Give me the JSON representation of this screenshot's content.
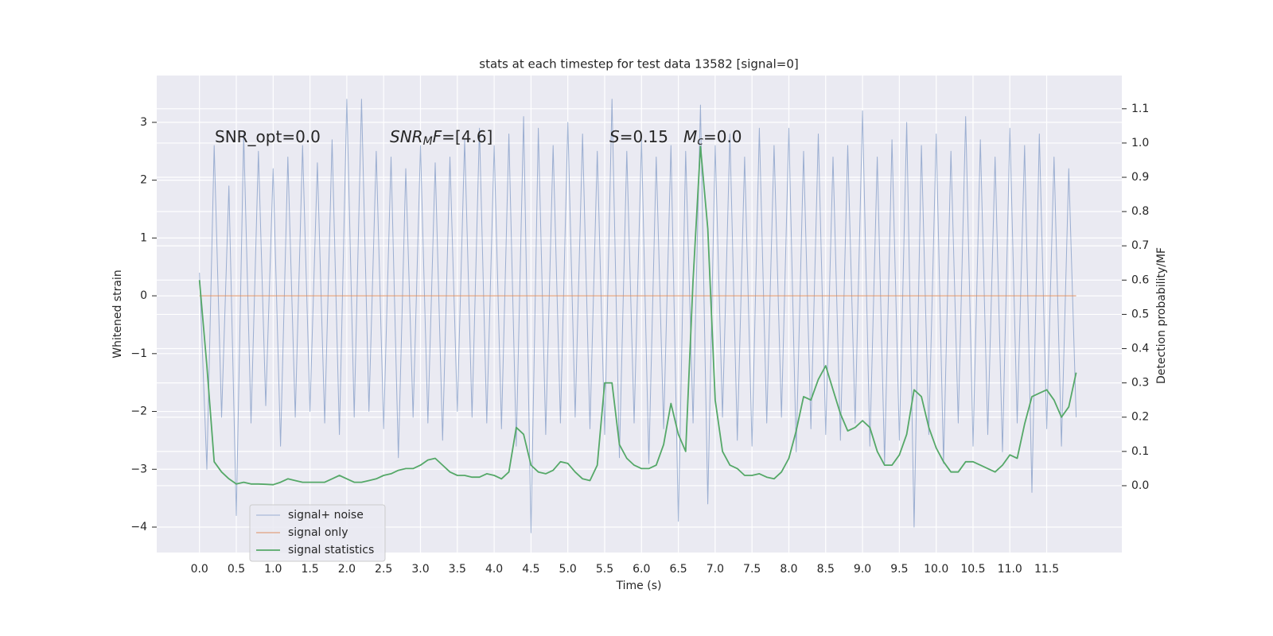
{
  "chart_data": {
    "type": "line",
    "title": "stats at each timestep for test data 13582 [signal=0]",
    "xlabel": "Time (s)",
    "ylabel": "Whitened strain",
    "y2label": "Detection probability/MF",
    "xlim": [
      -0.58,
      12.52
    ],
    "ylim": [
      -4.44,
      3.81
    ],
    "y2lim": [
      -0.195,
      1.197
    ],
    "xticks": [
      {
        "value": 0,
        "label": "0.0"
      },
      0.5,
      {
        "value": 1,
        "label": "1.0"
      },
      1.5,
      {
        "value": 2,
        "label": "2.0"
      },
      2.5,
      {
        "value": 3,
        "label": "3.0"
      },
      3.5,
      {
        "value": 4,
        "label": "4.0"
      },
      4.5,
      {
        "value": 5,
        "label": "5.0"
      },
      5.5,
      {
        "value": 6,
        "label": "6.0"
      },
      6.5,
      {
        "value": 7,
        "label": "7.0"
      },
      7.5,
      {
        "value": 8,
        "label": "8.0"
      },
      8.5,
      {
        "value": 9,
        "label": "9.0"
      },
      9.5,
      {
        "value": 10,
        "label": "10.0"
      },
      10.5,
      {
        "value": 11,
        "label": "11.0"
      },
      11.5
    ],
    "yticks": [
      {
        "value": -4,
        "label": "−4"
      },
      {
        "value": -3,
        "label": "−3"
      },
      {
        "value": -2,
        "label": "−2"
      },
      {
        "value": -1,
        "label": "−1"
      },
      0,
      1,
      2,
      3
    ],
    "y2ticks": [
      {
        "value": 0,
        "label": "0.0"
      },
      0.1,
      0.2,
      0.3,
      0.4,
      0.5,
      0.6,
      0.7,
      0.8,
      0.9,
      {
        "value": 1,
        "label": "1.0"
      },
      1.1
    ],
    "grid": true,
    "legend": "lower left",
    "x": [
      0,
      0.1,
      0.2,
      0.3,
      0.4,
      0.5,
      0.6,
      0.7,
      0.8,
      0.9,
      1,
      1.1,
      1.2,
      1.3,
      1.4,
      1.5,
      1.6,
      1.7,
      1.8,
      1.9,
      2,
      2.1,
      2.2,
      2.3,
      2.4,
      2.5,
      2.6,
      2.7,
      2.8,
      2.9,
      3,
      3.1,
      3.2,
      3.3,
      3.4,
      3.5,
      3.6,
      3.7,
      3.8,
      3.9,
      4,
      4.1,
      4.2,
      4.3,
      4.4,
      4.5,
      4.6,
      4.7,
      4.8,
      4.9,
      5,
      5.1,
      5.2,
      5.3,
      5.4,
      5.5,
      5.6,
      5.7,
      5.8,
      5.9,
      6,
      6.1,
      6.2,
      6.3,
      6.4,
      6.5,
      6.6,
      6.7,
      6.8,
      6.9,
      7,
      7.1,
      7.2,
      7.3,
      7.4,
      7.5,
      7.6,
      7.7,
      7.8,
      7.9,
      8,
      8.1,
      8.2,
      8.3,
      8.4,
      8.5,
      8.6,
      8.7,
      8.8,
      8.9,
      9,
      9.1,
      9.2,
      9.3,
      9.4,
      9.5,
      9.6,
      9.7,
      9.8,
      9.9,
      10,
      10.1,
      10.2,
      10.3,
      10.4,
      10.5,
      10.6,
      10.7,
      10.8,
      10.9,
      11,
      11.1,
      11.2,
      11.3,
      11.4,
      11.5,
      11.6,
      11.7,
      11.8,
      11.9
    ],
    "series": [
      {
        "name": "signal+ noise",
        "color": "#4c72b0",
        "values": [
          0.4,
          -3.0,
          2.6,
          -2.1,
          1.9,
          -3.8,
          2.8,
          -2.2,
          2.5,
          -1.9,
          2.2,
          -2.6,
          2.4,
          -2.1,
          2.6,
          -2.0,
          2.3,
          -2.2,
          2.7,
          -2.4,
          3.4,
          -2.1,
          3.4,
          -2.0,
          2.5,
          -2.3,
          2.4,
          -2.8,
          2.2,
          -2.1,
          2.6,
          -2.2,
          2.3,
          -2.5,
          2.4,
          -2.0,
          2.7,
          -2.1,
          2.9,
          -2.2,
          2.6,
          -2.3,
          2.8,
          -2.6,
          3.1,
          -4.1,
          2.9,
          -2.4,
          2.6,
          -2.2,
          3.0,
          -2.1,
          2.8,
          -2.3,
          2.5,
          -2.4,
          3.4,
          -2.8,
          2.5,
          -2.2,
          2.7,
          -2.9,
          2.4,
          -2.3,
          2.6,
          -3.9,
          2.5,
          -2.2,
          3.3,
          -3.6,
          2.6,
          -2.1,
          2.8,
          -2.5,
          2.4,
          -2.6,
          2.9,
          -2.2,
          2.6,
          -2.1,
          2.9,
          -2.7,
          2.5,
          -2.3,
          2.8,
          -2.4,
          2.4,
          -2.5,
          2.6,
          -2.2,
          3.2,
          -2.6,
          2.4,
          -2.9,
          2.7,
          -2.5,
          3.0,
          -4.0,
          2.6,
          -2.4,
          2.8,
          -2.9,
          2.5,
          -2.2,
          3.1,
          -2.6,
          2.7,
          -2.4,
          2.4,
          -2.7,
          2.9,
          -2.2,
          2.6,
          -3.4,
          2.8,
          -2.3,
          2.4,
          -2.6,
          2.2,
          -2.1
        ]
      },
      {
        "name": "signal only",
        "color": "#dd8452",
        "values": [
          0,
          0,
          0,
          0,
          0,
          0,
          0,
          0,
          0,
          0,
          0,
          0,
          0,
          0,
          0,
          0,
          0,
          0,
          0,
          0,
          0,
          0,
          0,
          0,
          0,
          0,
          0,
          0,
          0,
          0,
          0,
          0,
          0,
          0,
          0,
          0,
          0,
          0,
          0,
          0,
          0,
          0,
          0,
          0,
          0,
          0,
          0,
          0,
          0,
          0,
          0,
          0,
          0,
          0,
          0,
          0,
          0,
          0,
          0,
          0,
          0,
          0,
          0,
          0,
          0,
          0,
          0,
          0,
          0,
          0,
          0,
          0,
          0,
          0,
          0,
          0,
          0,
          0,
          0,
          0,
          0,
          0,
          0,
          0,
          0,
          0,
          0,
          0,
          0,
          0,
          0,
          0,
          0,
          0,
          0,
          0,
          0,
          0,
          0,
          0,
          0,
          0,
          0,
          0,
          0,
          0,
          0,
          0,
          0,
          0,
          0,
          0,
          0,
          0,
          0,
          0,
          0,
          0,
          0,
          0
        ]
      },
      {
        "name": "signal statistics",
        "color": "#55a868",
        "axis": "y2",
        "values": [
          0.6,
          0.35,
          0.07,
          0.04,
          0.02,
          0.005,
          0.01,
          0.005,
          0.005,
          0.004,
          0.003,
          0.01,
          0.02,
          0.015,
          0.01,
          0.01,
          0.01,
          0.01,
          0.02,
          0.03,
          0.02,
          0.01,
          0.01,
          0.015,
          0.02,
          0.03,
          0.035,
          0.045,
          0.05,
          0.05,
          0.06,
          0.075,
          0.08,
          0.06,
          0.04,
          0.03,
          0.03,
          0.025,
          0.025,
          0.035,
          0.03,
          0.02,
          0.04,
          0.17,
          0.15,
          0.06,
          0.04,
          0.035,
          0.045,
          0.07,
          0.065,
          0.04,
          0.02,
          0.015,
          0.06,
          0.3,
          0.3,
          0.12,
          0.08,
          0.06,
          0.05,
          0.05,
          0.06,
          0.12,
          0.24,
          0.15,
          0.1,
          0.6,
          0.99,
          0.75,
          0.25,
          0.1,
          0.06,
          0.05,
          0.03,
          0.03,
          0.035,
          0.025,
          0.02,
          0.04,
          0.08,
          0.16,
          0.26,
          0.25,
          0.31,
          0.35,
          0.28,
          0.21,
          0.16,
          0.17,
          0.19,
          0.17,
          0.1,
          0.06,
          0.06,
          0.09,
          0.15,
          0.28,
          0.26,
          0.17,
          0.11,
          0.07,
          0.04,
          0.04,
          0.07,
          0.07,
          0.06,
          0.05,
          0.04,
          0.06,
          0.09,
          0.08,
          0.18,
          0.26,
          0.27,
          0.28,
          0.25,
          0.2,
          0.23,
          0.33
        ]
      }
    ],
    "annotations": [
      [
        {
          "text": "SNR_opt=0.0"
        }
      ],
      [
        {
          "text": "SNR",
          "italic": true
        },
        {
          "text": "M",
          "italic": true,
          "sub": true
        },
        {
          "text": "F",
          "italic": true
        },
        {
          "text": "=[4.6]"
        }
      ],
      [
        {
          "text": "S",
          "italic": true
        },
        {
          "text": "=0.15"
        }
      ],
      [
        {
          "text": "M",
          "italic": true
        },
        {
          "text": "c",
          "italic": true,
          "sub": true
        },
        {
          "text": "=0.0"
        }
      ]
    ]
  }
}
